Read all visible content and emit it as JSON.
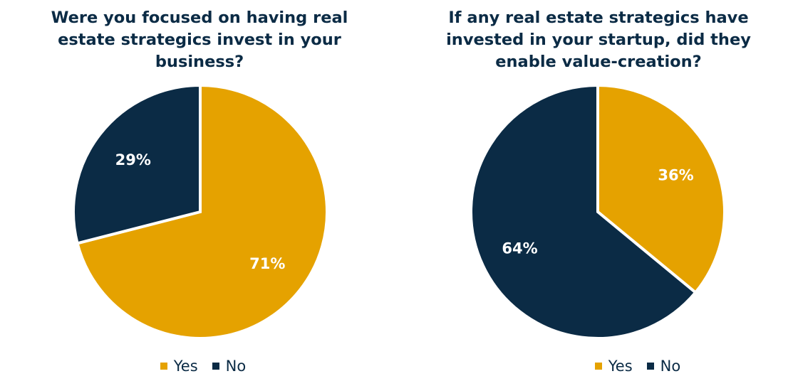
{
  "chart_data": [
    {
      "type": "pie",
      "title": "Were you focused on having real estate strategics invest in your business?",
      "categories": [
        "Yes",
        "No"
      ],
      "values": [
        71,
        29
      ],
      "data_labels": [
        "71%",
        "29%"
      ],
      "colors": [
        "#e5a200",
        "#0b2b45"
      ],
      "legend": [
        "Yes",
        "No"
      ],
      "legend_position": "bottom"
    },
    {
      "type": "pie",
      "title": "If any real estate strategics have invested in your startup, did they enable value-creation?",
      "categories": [
        "Yes",
        "No"
      ],
      "values": [
        36,
        64
      ],
      "data_labels": [
        "36%",
        "64%"
      ],
      "colors": [
        "#e5a200",
        "#0b2b45"
      ],
      "legend": [
        "Yes",
        "No"
      ],
      "legend_position": "bottom"
    }
  ],
  "colors": {
    "title_text": "#0b2b45",
    "label_text": "#ffffff",
    "separator": "#ffffff"
  }
}
